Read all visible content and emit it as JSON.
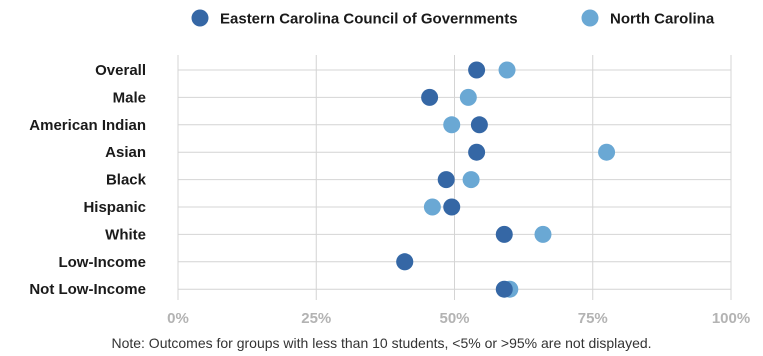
{
  "chart_data": {
    "type": "scatter",
    "orientation": "horizontal-dot",
    "categories": [
      "Overall",
      "Male",
      "American Indian",
      "Asian",
      "Black",
      "Hispanic",
      "White",
      "Low-Income",
      "Not Low-Income"
    ],
    "series": [
      {
        "name": "Eastern Carolina Council of Governments",
        "color": "#3567a5",
        "values": [
          0.54,
          0.455,
          0.545,
          0.54,
          0.485,
          0.495,
          0.59,
          0.41,
          0.59
        ]
      },
      {
        "name": "North Carolina",
        "color": "#6aa8d4",
        "values": [
          0.595,
          0.525,
          0.495,
          0.775,
          0.53,
          0.46,
          0.66,
          0.41,
          0.6
        ]
      }
    ],
    "draw_order": [
      "North Carolina",
      "Eastern Carolina Council of Governments"
    ],
    "xlim": [
      0,
      1
    ],
    "xticks": [
      {
        "value": 0,
        "label": "0%"
      },
      {
        "value": 0.25,
        "label": "25%"
      },
      {
        "value": 0.5,
        "label": "50%"
      },
      {
        "value": 0.75,
        "label": "75%"
      },
      {
        "value": 1,
        "label": "100%"
      }
    ],
    "xlabel": "",
    "ylabel": "",
    "grid": true,
    "legend_position": "top"
  },
  "note": "Note: Outcomes for groups with less than 10 students, <5% or >95% are not displayed."
}
